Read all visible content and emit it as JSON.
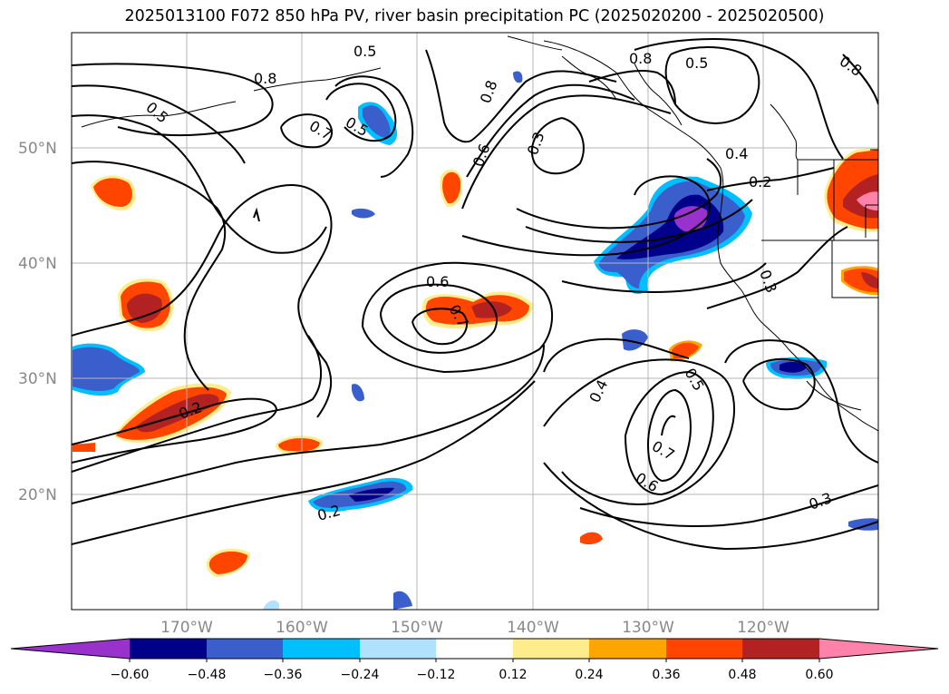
{
  "title": "2025013100 F072 850 hPa PV, river basin precipitation PC (2025020200 - 2025020500)",
  "lat_labels": [
    "50°N",
    "40°N",
    "30°N",
    "20°N"
  ],
  "lon_labels": [
    "170°W",
    "160°W",
    "150°W",
    "140°W",
    "130°W",
    "120°W"
  ],
  "contour_labels": [
    "0.8",
    "0.5",
    "0.5",
    "0.7",
    "0.5",
    "0.8",
    "0.6",
    "0.3",
    "0.8",
    "0.5",
    "0.8",
    "0.4",
    "0.2",
    "0.3",
    "0.6",
    "0.7",
    "0.2",
    "0.4",
    "0.5",
    "0.7",
    "0.6",
    "0.3",
    "0.2"
  ],
  "colorbar": {
    "ticks": [
      "−0.60",
      "−0.48",
      "−0.36",
      "−0.24",
      "−0.12",
      "0.12",
      "0.24",
      "0.36",
      "0.48",
      "0.60"
    ],
    "colors": [
      "#9932cc",
      "#00008b",
      "#3a5fcd",
      "#00bfff",
      "#b0e2ff",
      "#ffffff",
      "#ffec8b",
      "#ffa500",
      "#ff4500",
      "#b22222",
      "#ff82ab"
    ]
  }
}
